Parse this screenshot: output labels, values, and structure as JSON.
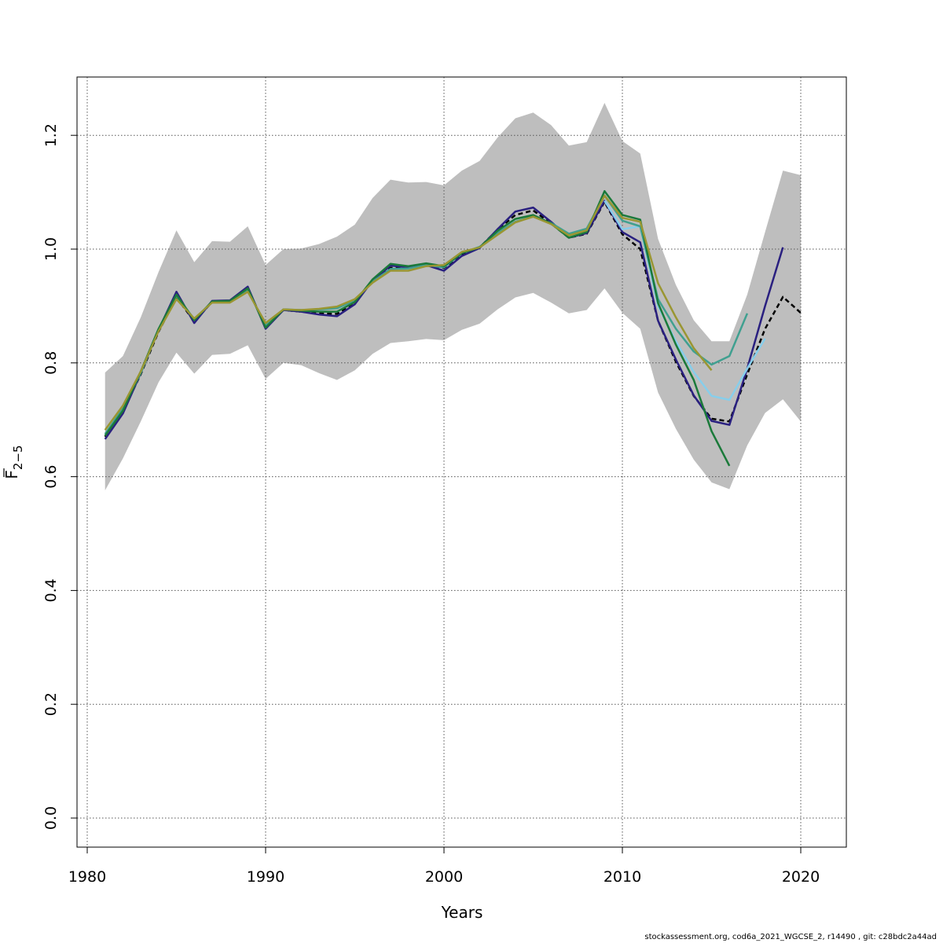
{
  "chart_data": {
    "type": "line",
    "title": "",
    "xlabel": "Years",
    "ylabel": "F",
    "ylabel_sub": "2−5",
    "xlim": [
      1980,
      2022
    ],
    "ylim": [
      -0.05,
      1.3
    ],
    "xticks": [
      1980,
      1990,
      2000,
      2010,
      2020
    ],
    "yticks": [
      0.0,
      0.2,
      0.4,
      0.6,
      0.8,
      1.0,
      1.2
    ],
    "xtick_labels": [
      "1980",
      "1990",
      "2000",
      "2010",
      "2020"
    ],
    "ytick_labels": [
      "0.0",
      "0.2",
      "0.4",
      "0.6",
      "0.8",
      "1.0",
      "1.2"
    ],
    "grid": true,
    "band_color": "#bebebe",
    "confidence_band": {
      "x": [
        1981,
        1982,
        1983,
        1984,
        1985,
        1986,
        1987,
        1988,
        1989,
        1990,
        1991,
        1992,
        1993,
        1994,
        1995,
        1996,
        1997,
        1998,
        1999,
        2000,
        2001,
        2002,
        2003,
        2004,
        2005,
        2006,
        2007,
        2008,
        2009,
        2010,
        2011,
        2012,
        2013,
        2014,
        2015,
        2016,
        2017,
        2018,
        2019,
        2020
      ],
      "upper": [
        0.783,
        0.812,
        0.88,
        0.96,
        1.033,
        0.977,
        1.014,
        1.013,
        1.04,
        0.972,
        1.0,
        1.001,
        1.009,
        1.022,
        1.043,
        1.09,
        1.122,
        1.117,
        1.118,
        1.112,
        1.138,
        1.155,
        1.196,
        1.23,
        1.24,
        1.218,
        1.182,
        1.188,
        1.257,
        1.19,
        1.168,
        1.018,
        0.937,
        0.875,
        0.838,
        0.838,
        0.92,
        1.03,
        1.138,
        1.13
      ],
      "lower": [
        0.576,
        0.632,
        0.697,
        0.766,
        0.818,
        0.781,
        0.814,
        0.816,
        0.831,
        0.772,
        0.8,
        0.796,
        0.782,
        0.77,
        0.787,
        0.816,
        0.835,
        0.838,
        0.842,
        0.84,
        0.858,
        0.869,
        0.894,
        0.915,
        0.923,
        0.906,
        0.887,
        0.893,
        0.931,
        0.888,
        0.86,
        0.748,
        0.684,
        0.63,
        0.59,
        0.578,
        0.655,
        0.712,
        0.736,
        0.697
      ]
    },
    "series": [
      {
        "color": "#000000",
        "dashed": true,
        "x": [
          1981,
          1982,
          1983,
          1984,
          1985,
          1986,
          1987,
          1988,
          1989,
          1990,
          1991,
          1992,
          1993,
          1994,
          1995,
          1996,
          1997,
          1998,
          1999,
          2000,
          2001,
          2002,
          2003,
          2004,
          2005,
          2006,
          2007,
          2008,
          2009,
          2010,
          2011,
          2012,
          2013,
          2014,
          2015,
          2016,
          2017,
          2018,
          2019,
          2020
        ],
        "y": [
          0.67,
          0.715,
          0.78,
          0.855,
          0.915,
          0.873,
          0.907,
          0.908,
          0.93,
          0.865,
          0.893,
          0.89,
          0.887,
          0.886,
          0.906,
          0.944,
          0.967,
          0.968,
          0.973,
          0.967,
          0.99,
          1.003,
          1.034,
          1.06,
          1.068,
          1.045,
          1.02,
          1.027,
          1.083,
          1.026,
          1.0,
          0.874,
          0.802,
          0.742,
          0.702,
          0.697,
          0.78,
          0.86,
          0.916,
          0.888
        ]
      },
      {
        "color": "#2a2080",
        "x": [
          1981,
          1982,
          1983,
          1984,
          1985,
          1986,
          1987,
          1988,
          1989,
          1990,
          1991,
          1992,
          1993,
          1994,
          1995,
          1996,
          1997,
          1998,
          1999,
          2000,
          2001,
          2002,
          2003,
          2004,
          2005,
          2006,
          2007,
          2008,
          2009,
          2010,
          2011,
          2012,
          2013,
          2014,
          2015,
          2016,
          2017,
          2018,
          2019
        ],
        "y": [
          0.666,
          0.711,
          0.782,
          0.858,
          0.925,
          0.87,
          0.909,
          0.91,
          0.934,
          0.86,
          0.893,
          0.89,
          0.885,
          0.882,
          0.903,
          0.945,
          0.971,
          0.968,
          0.972,
          0.962,
          0.988,
          1.002,
          1.035,
          1.066,
          1.073,
          1.048,
          1.02,
          1.028,
          1.085,
          1.03,
          1.012,
          0.874,
          0.806,
          0.743,
          0.698,
          0.691,
          0.79,
          0.9,
          1.003
        ]
      },
      {
        "color": "#87ceeb",
        "x": [
          2009,
          2010,
          2011,
          2012,
          2013,
          2014,
          2015,
          2016,
          2017,
          2018
        ],
        "y": [
          1.085,
          1.035,
          1.04,
          0.9,
          0.838,
          0.784,
          0.742,
          0.735,
          0.79,
          0.843
        ]
      },
      {
        "color": "#40a090",
        "x": [
          1981,
          1982,
          1983,
          1984,
          1985,
          1986,
          1987,
          1988,
          1989,
          1990,
          1991,
          1992,
          1993,
          1994,
          1995,
          1996,
          1997,
          1998,
          1999,
          2000,
          2001,
          2002,
          2003,
          2004,
          2005,
          2006,
          2007,
          2008,
          2009,
          2010,
          2011,
          2012,
          2013,
          2014,
          2015,
          2016,
          2017
        ],
        "y": [
          0.675,
          0.72,
          0.782,
          0.858,
          0.918,
          0.877,
          0.907,
          0.908,
          0.928,
          0.866,
          0.894,
          0.893,
          0.894,
          0.896,
          0.91,
          0.943,
          0.965,
          0.966,
          0.972,
          0.968,
          0.993,
          1.004,
          1.028,
          1.048,
          1.057,
          1.046,
          1.027,
          1.036,
          1.094,
          1.05,
          1.04,
          0.912,
          0.86,
          0.82,
          0.797,
          0.812,
          0.887
        ]
      },
      {
        "color": "#1b7a3a",
        "x": [
          1981,
          1982,
          1983,
          1984,
          1985,
          1986,
          1987,
          1988,
          1989,
          1990,
          1991,
          1992,
          1993,
          1994,
          1995,
          1996,
          1997,
          1998,
          1999,
          2000,
          2001,
          2002,
          2003,
          2004,
          2005,
          2006,
          2007,
          2008,
          2009,
          2010,
          2011,
          2012,
          2013,
          2014,
          2015,
          2016
        ],
        "y": [
          0.672,
          0.716,
          0.785,
          0.86,
          0.92,
          0.875,
          0.908,
          0.909,
          0.931,
          0.862,
          0.894,
          0.892,
          0.89,
          0.89,
          0.907,
          0.947,
          0.974,
          0.97,
          0.975,
          0.97,
          0.993,
          1.003,
          1.032,
          1.053,
          1.06,
          1.045,
          1.02,
          1.03,
          1.102,
          1.06,
          1.052,
          0.905,
          0.832,
          0.77,
          0.68,
          0.619
        ]
      },
      {
        "color": "#9a9632",
        "x": [
          1981,
          1982,
          1983,
          1984,
          1985,
          1986,
          1987,
          1988,
          1989,
          1990,
          1991,
          1992,
          1993,
          1994,
          1995,
          1996,
          1997,
          1998,
          1999,
          2000,
          2001,
          2002,
          2003,
          2004,
          2005,
          2006,
          2007,
          2008,
          2009,
          2010,
          2011,
          2012,
          2013,
          2014,
          2015
        ],
        "y": [
          0.682,
          0.725,
          0.785,
          0.856,
          0.912,
          0.878,
          0.906,
          0.906,
          0.925,
          0.87,
          0.894,
          0.893,
          0.895,
          0.899,
          0.912,
          0.941,
          0.962,
          0.962,
          0.97,
          0.972,
          0.995,
          1.003,
          1.025,
          1.047,
          1.057,
          1.044,
          1.024,
          1.033,
          1.094,
          1.055,
          1.048,
          0.94,
          0.88,
          0.826,
          0.787
        ]
      }
    ]
  },
  "footer": "stockassessment.org, cod6a_2021_WGCSE_2, r14490 , git: c28bdc2a44ad"
}
